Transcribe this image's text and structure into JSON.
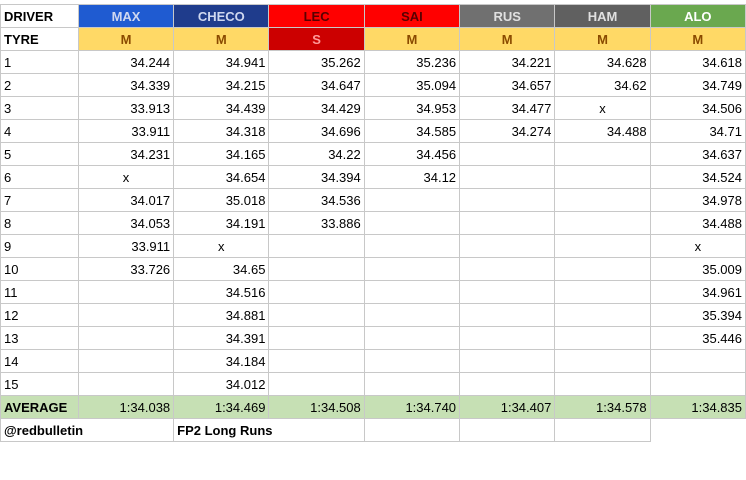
{
  "header": {
    "label": "DRIVER"
  },
  "tyre_row": {
    "label": "TYRE"
  },
  "average_row": {
    "label": "AVERAGE"
  },
  "footer": {
    "handle": "@redbulletin",
    "caption": "FP2 Long Runs"
  },
  "colors": {
    "max": "#1f5bd1",
    "checo": "#1f3c8c",
    "lec": "#ff0000",
    "sai": "#ff0000",
    "rus": "#707070",
    "ham": "#606060",
    "alo": "#6aa84f",
    "tyre_medium": "#ffd966",
    "tyre_soft": "#cc0000",
    "average_bg": "#c6e0b4"
  },
  "drivers": [
    {
      "name": "MAX",
      "color": "#1f5bd1",
      "tyre": "M",
      "tyre_color": "#ffd966",
      "laps": [
        "34.244",
        "34.339",
        "33.913",
        "33.911",
        "34.231",
        "x",
        "34.017",
        "34.053",
        "33.911",
        "33.726",
        "",
        "",
        "",
        "",
        ""
      ],
      "average": "1:34.038"
    },
    {
      "name": "CHECO",
      "color": "#1f3c8c",
      "tyre": "M",
      "tyre_color": "#ffd966",
      "laps": [
        "34.941",
        "34.215",
        "34.439",
        "34.318",
        "34.165",
        "34.654",
        "35.018",
        "34.191",
        "x",
        "34.65",
        "34.516",
        "34.881",
        "34.391",
        "34.184",
        "34.012"
      ],
      "average": "1:34.469"
    },
    {
      "name": "LEC",
      "color": "#ff0000",
      "tyre": "S",
      "tyre_color": "#cc0000",
      "laps": [
        "35.262",
        "34.647",
        "34.429",
        "34.696",
        "34.22",
        "34.394",
        "34.536",
        "33.886",
        "",
        "",
        "",
        "",
        "",
        "",
        ""
      ],
      "average": "1:34.508"
    },
    {
      "name": "SAI",
      "color": "#ff0000",
      "tyre": "M",
      "tyre_color": "#ffd966",
      "laps": [
        "35.236",
        "35.094",
        "34.953",
        "34.585",
        "34.456",
        "34.12",
        "",
        "",
        "",
        "",
        "",
        "",
        "",
        "",
        ""
      ],
      "average": "1:34.740"
    },
    {
      "name": "RUS",
      "color": "#707070",
      "tyre": "M",
      "tyre_color": "#ffd966",
      "laps": [
        "34.221",
        "34.657",
        "34.477",
        "34.274",
        "",
        "",
        "",
        "",
        "",
        "",
        "",
        "",
        "",
        "",
        ""
      ],
      "average": "1:34.407"
    },
    {
      "name": "HAM",
      "color": "#606060",
      "tyre": "M",
      "tyre_color": "#ffd966",
      "laps": [
        "34.628",
        "34.62",
        "x",
        "34.488",
        "",
        "",
        "",
        "",
        "",
        "",
        "",
        "",
        "",
        "",
        ""
      ],
      "average": "1:34.578"
    },
    {
      "name": "ALO",
      "color": "#6aa84f",
      "tyre": "M",
      "tyre_color": "#ffd966",
      "laps": [
        "34.618",
        "34.749",
        "34.506",
        "34.71",
        "34.637",
        "34.524",
        "34.978",
        "34.488",
        "x",
        "35.009",
        "34.961",
        "35.394",
        "35.446",
        "",
        ""
      ],
      "average": "1:34.835"
    }
  ],
  "lap_numbers": [
    "1",
    "2",
    "3",
    "4",
    "5",
    "6",
    "7",
    "8",
    "9",
    "10",
    "11",
    "12",
    "13",
    "14",
    "15"
  ]
}
